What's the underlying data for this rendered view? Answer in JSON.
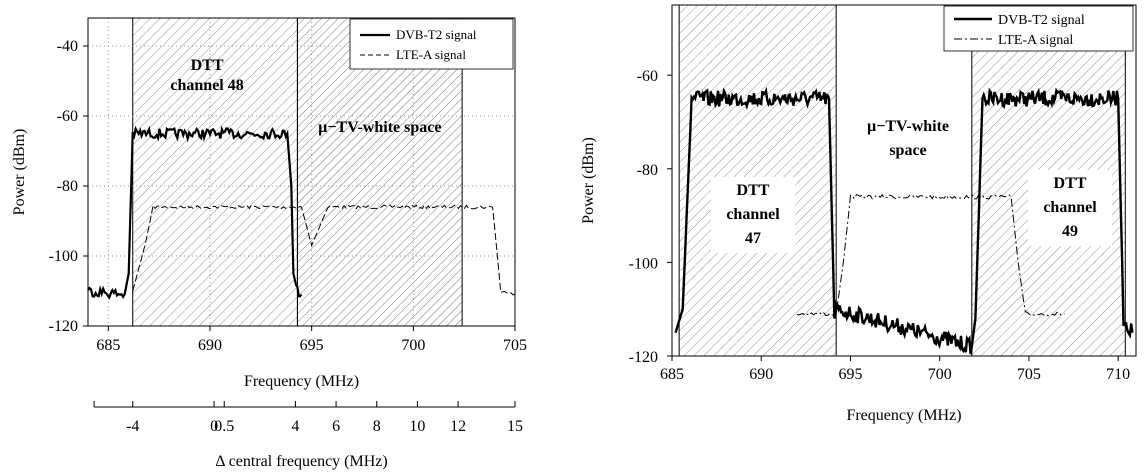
{
  "chart_data": [
    {
      "type": "line",
      "xlabel": "Frequency (MHz)",
      "ylabel": "Power (dBm)",
      "xlim": [
        684,
        705
      ],
      "ylim": [
        -120,
        -32
      ],
      "xticks": [
        685,
        690,
        695,
        700,
        705
      ],
      "yticks": [
        -120,
        -100,
        -80,
        -60,
        -40
      ],
      "grid": true,
      "legend_position": "top-right",
      "secondary_axis": {
        "label": "Δ central frequency (MHz)",
        "ticks": [
          "-4",
          "0",
          "0.5",
          "4",
          "6",
          "8",
          "10",
          "12",
          "15"
        ],
        "tick_positions_mhz": [
          686.2,
          690.2,
          690.7,
          694.2,
          696.2,
          698.2,
          700.2,
          702.2,
          705.0
        ]
      },
      "series": [
        {
          "name": "DVB-T2 signal",
          "style": "solid",
          "x": [
            684,
            685.8,
            686.0,
            686.2,
            690,
            693.8,
            694.0,
            694.1,
            694.3,
            694.5
          ],
          "y": [
            -110,
            -111,
            -105,
            -65,
            -65,
            -65,
            -80,
            -105,
            -110,
            -111
          ]
        },
        {
          "name": "LTE-A  signal",
          "style": "dashed",
          "x": [
            686.2,
            686.8,
            687.2,
            694.5,
            695.0,
            695.8,
            696.2,
            703.5,
            703.9,
            704.3,
            705
          ],
          "y": [
            -110,
            -97,
            -86,
            -86,
            -97,
            -86,
            -86,
            -86,
            -86,
            -110,
            -111
          ]
        }
      ],
      "regions": [
        {
          "label_lines": [
            "DTT",
            "channel 48"
          ],
          "x": [
            686.2,
            694.3
          ],
          "hatch": "diagonal"
        },
        {
          "label_lines": [
            "µ−TV-white space"
          ],
          "x": [
            694.3,
            702.4
          ],
          "hatch": "diagonal"
        }
      ]
    },
    {
      "type": "line",
      "xlabel": "Frequency (MHz)",
      "ylabel": "Power (dBm)",
      "xlim": [
        685,
        711
      ],
      "ylim": [
        -120,
        -45
      ],
      "xticks": [
        685,
        690,
        695,
        700,
        705,
        710
      ],
      "yticks": [
        -120,
        -100,
        -80,
        -60
      ],
      "grid": false,
      "legend_position": "top-right",
      "series": [
        {
          "name": "DVB-T2 signal",
          "style": "solid",
          "x": [
            685.2,
            685.6,
            686.1,
            690,
            693.8,
            694.1,
            694.2,
            701.8,
            702.0,
            702.4,
            706,
            710.0,
            710.3,
            710.8
          ],
          "y": [
            -115,
            -110,
            -65,
            -65,
            -65,
            -112,
            -110,
            -118,
            -112,
            -65,
            -65,
            -65,
            -112,
            -115
          ]
        },
        {
          "name": "LTE-A  signal",
          "style": "dashdot",
          "x": [
            692.0,
            693.5,
            694.2,
            694.6,
            695.0,
            698,
            701.5,
            704.0,
            704.4,
            704.8,
            707.0
          ],
          "y": [
            -111,
            -111,
            -111,
            -100,
            -86,
            -86,
            -86,
            -86,
            -100,
            -111,
            -111
          ]
        }
      ],
      "regions": [
        {
          "label_lines": [
            "DTT",
            "channel",
            "47"
          ],
          "x": [
            685.4,
            694.2
          ],
          "hatch": "diagonal"
        },
        {
          "label_lines": [
            "µ−TV-white",
            "space"
          ],
          "x": [
            694.2,
            701.8
          ],
          "hatch": "none"
        },
        {
          "label_lines": [
            "DTT",
            "channel",
            "49"
          ],
          "x": [
            701.8,
            710.4
          ],
          "hatch": "diagonal"
        }
      ]
    }
  ]
}
